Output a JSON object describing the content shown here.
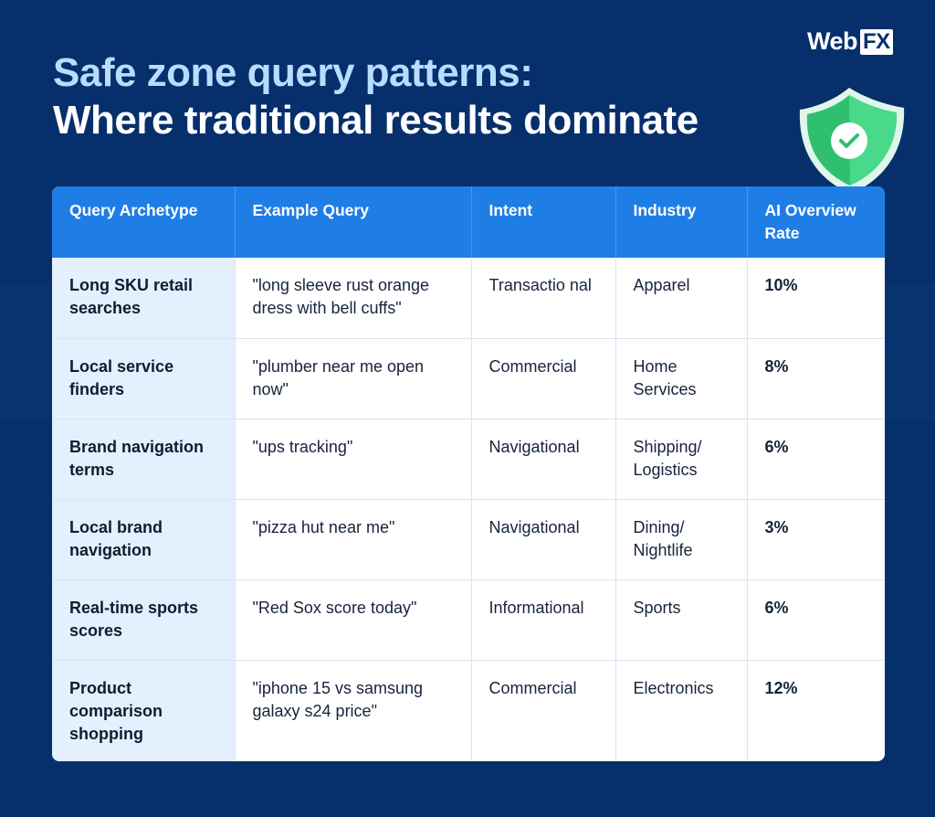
{
  "logo": {
    "web": "Web",
    "fx": "FX"
  },
  "title": {
    "line1": "Safe zone query patterns:",
    "line2": "Where traditional results dominate"
  },
  "colors": {
    "background": "#072f6c",
    "title_accent": "#b9dcff",
    "header": "#1f7ee6",
    "archetype_cell": "#e4f0fd",
    "shield": "#3ecb7e"
  },
  "table": {
    "headers": [
      "Query Archetype",
      "Example Query",
      "Intent",
      "Industry",
      "AI Overview Rate"
    ],
    "rows": [
      {
        "archetype": "Long SKU retail searches",
        "query": "\"long sleeve rust orange dress with bell cuffs\"",
        "intent": "Transactio nal",
        "industry": "Apparel",
        "rate": "10%"
      },
      {
        "archetype": "Local service finders",
        "query": "\"plumber near me open now\"",
        "intent": "Commercial",
        "industry": "Home Services",
        "rate": "8%"
      },
      {
        "archetype": "Brand navigation terms",
        "query": "\"ups tracking\"",
        "intent": "Navigational",
        "industry": "Shipping/ Logistics",
        "rate": "6%"
      },
      {
        "archetype": "Local brand navigation",
        "query": "\"pizza hut near me\"",
        "intent": "Navigational",
        "industry": "Dining/ Nightlife",
        "rate": "3%"
      },
      {
        "archetype": "Real-time sports scores",
        "query": "\"Red Sox score today\"",
        "intent": "Informational",
        "industry": "Sports",
        "rate": "6%"
      },
      {
        "archetype": "Product comparison shopping",
        "query": "\"iphone 15 vs samsung galaxy s24 price\"",
        "intent": "Commercial",
        "industry": "Electronics",
        "rate": "12%"
      }
    ]
  }
}
